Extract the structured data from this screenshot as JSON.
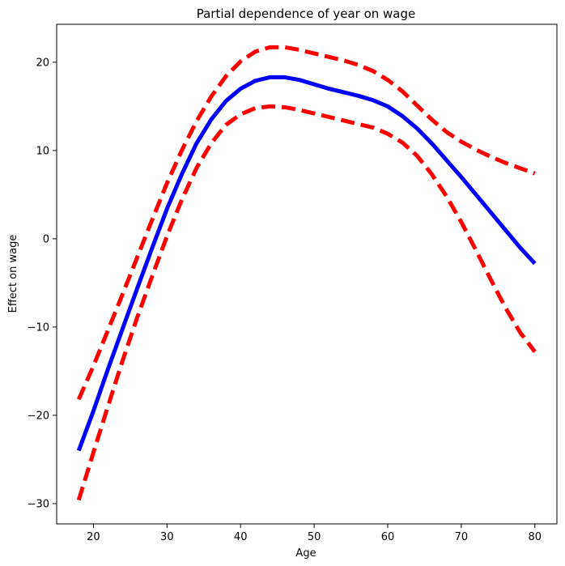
{
  "chart_data": {
    "type": "line",
    "title": "Partial dependence of year on wage",
    "xlabel": "Age",
    "ylabel": "Effect on wage",
    "xlim": [
      15,
      83
    ],
    "ylim": [
      -32.3,
      24.3
    ],
    "xticks": [
      20,
      30,
      40,
      50,
      60,
      70,
      80
    ],
    "yticks": [
      -30,
      -20,
      -10,
      0,
      10,
      20
    ],
    "grid": false,
    "legend": "none",
    "series": [
      {
        "style": "solid",
        "color": "#0000ff",
        "points": [
          [
            18,
            -24.0
          ],
          [
            20,
            -19.5
          ],
          [
            22,
            -14.7
          ],
          [
            24,
            -10.1
          ],
          [
            26,
            -5.5
          ],
          [
            28,
            -1.0
          ],
          [
            30,
            3.4
          ],
          [
            32,
            7.3
          ],
          [
            34,
            10.8
          ],
          [
            36,
            13.5
          ],
          [
            38,
            15.6
          ],
          [
            40,
            17.0
          ],
          [
            42,
            17.9
          ],
          [
            44,
            18.3
          ],
          [
            46,
            18.3
          ],
          [
            48,
            18.0
          ],
          [
            50,
            17.5
          ],
          [
            52,
            17.0
          ],
          [
            54,
            16.6
          ],
          [
            56,
            16.2
          ],
          [
            58,
            15.7
          ],
          [
            60,
            15.0
          ],
          [
            62,
            13.9
          ],
          [
            64,
            12.5
          ],
          [
            66,
            10.8
          ],
          [
            68,
            8.9
          ],
          [
            70,
            7.0
          ],
          [
            72,
            5.0
          ],
          [
            74,
            3.0
          ],
          [
            76,
            1.0
          ],
          [
            78,
            -1.0
          ],
          [
            80,
            -2.8
          ]
        ]
      },
      {
        "style": "dashed",
        "color": "#ff0000",
        "points": [
          [
            18,
            -18.2
          ],
          [
            20,
            -14.4
          ],
          [
            22,
            -10.3
          ],
          [
            24,
            -6.2
          ],
          [
            26,
            -2.0
          ],
          [
            28,
            2.2
          ],
          [
            30,
            6.3
          ],
          [
            32,
            10.0
          ],
          [
            34,
            13.3
          ],
          [
            36,
            16.1
          ],
          [
            38,
            18.4
          ],
          [
            40,
            20.1
          ],
          [
            42,
            21.2
          ],
          [
            44,
            21.7
          ],
          [
            46,
            21.7
          ],
          [
            48,
            21.4
          ],
          [
            50,
            21.0
          ],
          [
            52,
            20.6
          ],
          [
            54,
            20.2
          ],
          [
            56,
            19.7
          ],
          [
            58,
            19.0
          ],
          [
            60,
            18.0
          ],
          [
            62,
            16.7
          ],
          [
            64,
            15.1
          ],
          [
            66,
            13.5
          ],
          [
            68,
            12.1
          ],
          [
            70,
            11.0
          ],
          [
            72,
            10.1
          ],
          [
            74,
            9.3
          ],
          [
            76,
            8.6
          ],
          [
            78,
            8.0
          ],
          [
            80,
            7.4
          ]
        ]
      },
      {
        "style": "dashed",
        "color": "#ff0000",
        "points": [
          [
            18,
            -29.6
          ],
          [
            20,
            -24.2
          ],
          [
            22,
            -18.9
          ],
          [
            24,
            -13.7
          ],
          [
            26,
            -8.8
          ],
          [
            28,
            -4.2
          ],
          [
            30,
            0.3
          ],
          [
            32,
            4.4
          ],
          [
            34,
            8.0
          ],
          [
            36,
            10.8
          ],
          [
            38,
            12.9
          ],
          [
            40,
            14.1
          ],
          [
            42,
            14.8
          ],
          [
            44,
            15.0
          ],
          [
            46,
            14.9
          ],
          [
            48,
            14.6
          ],
          [
            50,
            14.2
          ],
          [
            52,
            13.8
          ],
          [
            54,
            13.4
          ],
          [
            56,
            13.0
          ],
          [
            58,
            12.6
          ],
          [
            60,
            11.9
          ],
          [
            62,
            10.9
          ],
          [
            64,
            9.4
          ],
          [
            66,
            7.3
          ],
          [
            68,
            4.8
          ],
          [
            70,
            1.9
          ],
          [
            72,
            -1.3
          ],
          [
            74,
            -4.6
          ],
          [
            76,
            -7.8
          ],
          [
            78,
            -10.6
          ],
          [
            80,
            -12.8
          ]
        ]
      }
    ]
  }
}
